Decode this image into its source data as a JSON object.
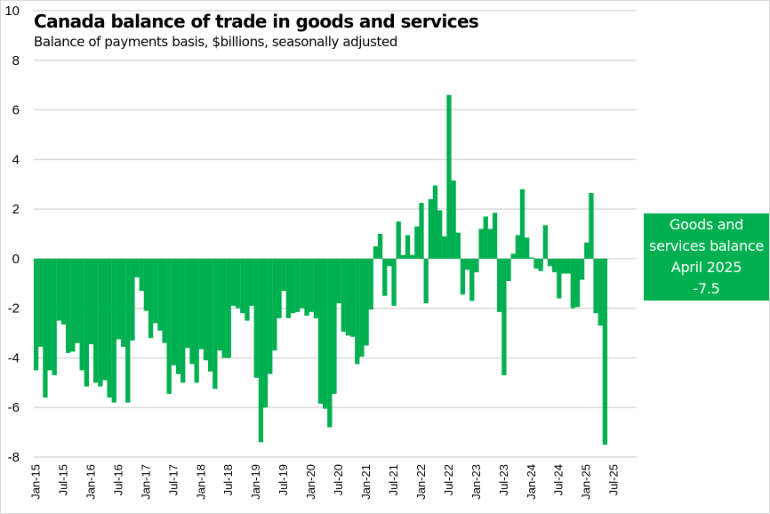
{
  "chart_data": {
    "type": "bar",
    "title": "Canada balance of trade in goods and services",
    "subtitle": "Balance of payments basis, $billions, seasonally adjusted",
    "xlabel": "",
    "ylabel": "",
    "ylim": [
      -8,
      10
    ],
    "yticks": [
      10,
      8,
      6,
      4,
      2,
      0,
      -2,
      -4,
      -6,
      -8
    ],
    "grid": true,
    "bar_color": "#00b050",
    "grid_color": "#d9d9d9",
    "x_start": "Jan-15",
    "x_tick_labels": [
      "Jan-15",
      "Jul-15",
      "Jan-16",
      "Jul-16",
      "Jan-17",
      "Jul-17",
      "Jan-18",
      "Jul-18",
      "Jan-19",
      "Jul-19",
      "Jan-20",
      "Jul-20",
      "Jan-21",
      "Jul-21",
      "Jan-22",
      "Jul-22",
      "Jan-23",
      "Jul-23",
      "Jan-24",
      "Jul-24",
      "Jan-25",
      "Jul-25"
    ],
    "series": [
      {
        "name": "Goods and services balance",
        "values": [
          -4.5,
          -3.55,
          -5.6,
          -4.5,
          -4.7,
          -2.5,
          -2.65,
          -3.8,
          -3.75,
          -3.4,
          -4.5,
          -5.15,
          -3.45,
          -5.0,
          -5.15,
          -4.9,
          -5.6,
          -5.8,
          -3.25,
          -3.55,
          -5.8,
          -3.3,
          -0.75,
          -1.3,
          -2.1,
          -3.2,
          -2.6,
          -2.9,
          -3.4,
          -5.45,
          -4.3,
          -4.65,
          -5.0,
          -3.6,
          -4.25,
          -5.0,
          -3.65,
          -4.1,
          -4.55,
          -5.25,
          -3.7,
          -4.0,
          -4.0,
          -1.9,
          -2.0,
          -2.2,
          -2.5,
          -1.9,
          -4.8,
          -7.4,
          -6.0,
          -4.65,
          -3.7,
          -2.4,
          -1.3,
          -2.4,
          -2.2,
          -2.15,
          -2.0,
          -2.3,
          -2.15,
          -2.4,
          -5.85,
          -6.05,
          -6.8,
          -5.45,
          -1.8,
          -2.95,
          -3.1,
          -3.15,
          -4.25,
          -3.95,
          -3.5,
          -2.05,
          0.5,
          1.0,
          -1.5,
          -0.3,
          -1.9,
          1.5,
          0.15,
          0.95,
          0.15,
          1.3,
          2.25,
          -1.8,
          2.4,
          2.95,
          1.95,
          0.9,
          6.6,
          3.15,
          1.05,
          -1.45,
          -0.45,
          -1.7,
          -0.55,
          1.2,
          1.7,
          1.2,
          1.85,
          -2.15,
          -4.7,
          -0.9,
          0.2,
          0.95,
          2.8,
          0.85,
          0.05,
          -0.4,
          -0.5,
          1.35,
          -0.3,
          -0.55,
          -1.6,
          -0.6,
          -0.6,
          -2.0,
          -1.95,
          -0.85,
          0.65,
          2.65,
          -2.2,
          -2.7,
          -7.5
        ]
      }
    ],
    "annotation": {
      "lines": [
        "Goods and",
        "services balance",
        "April 2025",
        "-7.5"
      ],
      "color": "#00b050"
    }
  }
}
